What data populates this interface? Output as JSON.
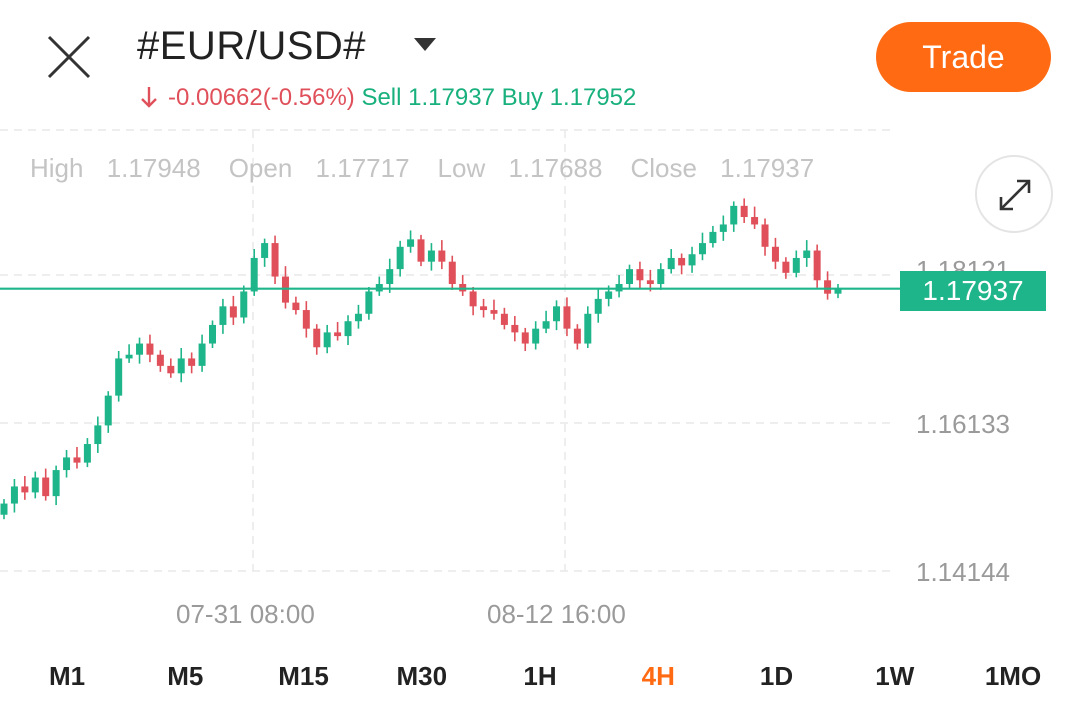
{
  "header": {
    "symbol": "#EUR/USD#",
    "change": "-0.00662(-0.56%)",
    "sell_label": "Sell",
    "sell_value": "1.17937",
    "buy_label": "Buy",
    "buy_value": "1.17952",
    "trade_label": "Trade",
    "icons": {
      "close": "close-icon",
      "dropdown": "caret-down-icon",
      "change_direction": "arrow-down-icon"
    }
  },
  "ohlc": {
    "high_label": "High",
    "high": "1.17948",
    "open_label": "Open",
    "open": "1.17717",
    "low_label": "Low",
    "low": "1.17688",
    "close_label": "Close",
    "close": "1.17937"
  },
  "chart_data": {
    "type": "candlestick",
    "current_price": "1.17937",
    "y_ticks": [
      "1.18121",
      "1.16133",
      "1.14144"
    ],
    "x_ticks": [
      "07-31 08:00",
      "08-12 16:00"
    ],
    "colors": {
      "up": "#1fb58a",
      "down": "#e0505a",
      "price_line": "#1fb58a"
    },
    "close_series": [
      1.1505,
      1.1528,
      1.152,
      1.154,
      1.1515,
      1.155,
      1.1567,
      1.156,
      1.1585,
      1.161,
      1.165,
      1.17,
      1.1705,
      1.172,
      1.1705,
      1.169,
      1.168,
      1.17,
      1.169,
      1.172,
      1.1745,
      1.177,
      1.1755,
      1.179,
      1.1835,
      1.1855,
      1.181,
      1.1775,
      1.1765,
      1.174,
      1.1715,
      1.1735,
      1.173,
      1.175,
      1.176,
      1.179,
      1.18,
      1.182,
      1.185,
      1.186,
      1.183,
      1.1845,
      1.183,
      1.18,
      1.179,
      1.177,
      1.1765,
      1.176,
      1.1745,
      1.1735,
      1.172,
      1.174,
      1.175,
      1.177,
      1.174,
      1.172,
      1.176,
      1.178,
      1.179,
      1.18,
      1.182,
      1.1805,
      1.18,
      1.182,
      1.1835,
      1.1825,
      1.184,
      1.1855,
      1.187,
      1.188,
      1.1905,
      1.189,
      1.188,
      1.185,
      1.183,
      1.1815,
      1.1835,
      1.1845,
      1.1805,
      1.1787,
      1.1794
    ],
    "icons": {
      "expand": "expand-icon"
    }
  },
  "timeframes": {
    "items": [
      "M1",
      "M5",
      "M15",
      "M30",
      "1H",
      "4H",
      "1D",
      "1W",
      "1MO"
    ],
    "active": "4H"
  }
}
